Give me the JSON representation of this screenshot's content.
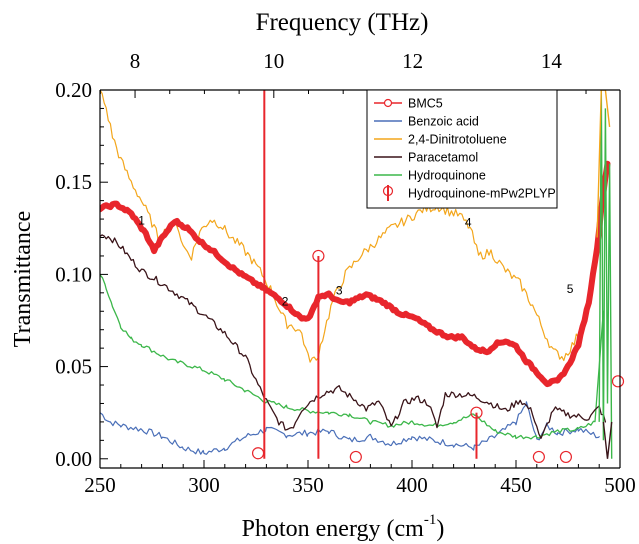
{
  "chart_data": {
    "type": "line",
    "xlabel": "Photon energy (cm",
    "xlabel_sup": "-1",
    "xlabel_close": ")",
    "ylabel": "Transmittance",
    "top_axis_label": "Frequency (THz)",
    "xlim": [
      250,
      500
    ],
    "ylim": [
      -0.005,
      0.2
    ],
    "x_ticks": [
      250,
      300,
      350,
      400,
      450,
      500
    ],
    "x_tick_labels": [
      "250",
      "300",
      "350",
      "400",
      "450",
      "500"
    ],
    "y_ticks": [
      0.0,
      0.05,
      0.1,
      0.15,
      0.2
    ],
    "y_tick_labels": [
      "0.00",
      "0.05",
      "0.10",
      "0.15",
      "0.20"
    ],
    "top_ticks_thz": [
      8,
      10,
      12,
      14
    ],
    "top_tick_labels": [
      "8",
      "10",
      "12",
      "14"
    ],
    "legend_position": "top-right",
    "series": [
      {
        "name": "BMC5",
        "color": "#e8262c",
        "x": [
          250,
          258,
          265,
          272,
          276,
          280,
          286,
          292,
          298,
          305,
          312,
          318,
          325,
          332,
          338,
          343,
          347,
          351,
          355,
          360,
          365,
          370,
          378,
          386,
          394,
          402,
          410,
          418,
          424,
          430,
          436,
          440,
          445,
          450,
          455,
          460,
          465,
          470,
          475,
          480,
          485,
          489,
          492,
          494
        ],
        "y": [
          0.136,
          0.138,
          0.133,
          0.122,
          0.113,
          0.12,
          0.129,
          0.125,
          0.118,
          0.112,
          0.105,
          0.1,
          0.095,
          0.09,
          0.085,
          0.08,
          0.076,
          0.077,
          0.088,
          0.089,
          0.085,
          0.085,
          0.089,
          0.085,
          0.079,
          0.076,
          0.07,
          0.066,
          0.066,
          0.06,
          0.058,
          0.062,
          0.064,
          0.061,
          0.053,
          0.047,
          0.041,
          0.042,
          0.05,
          0.062,
          0.085,
          0.115,
          0.145,
          0.16
        ]
      },
      {
        "name": "Benzoic acid",
        "color": "#4a6fb8",
        "x": [
          250,
          255,
          260,
          270,
          280,
          290,
          300,
          310,
          320,
          330,
          340,
          350,
          360,
          370,
          380,
          390,
          400,
          410,
          420,
          430,
          440,
          450,
          455,
          460,
          465,
          470,
          480,
          490
        ],
        "y": [
          0.025,
          0.02,
          0.018,
          0.016,
          0.012,
          0.006,
          0.003,
          0.006,
          0.012,
          0.016,
          0.013,
          0.014,
          0.015,
          0.01,
          0.012,
          0.008,
          0.012,
          0.01,
          0.008,
          0.006,
          0.012,
          0.02,
          0.03,
          0.01,
          0.018,
          0.014,
          0.016,
          0.012
        ]
      },
      {
        "name": "2,4-Dinitrotoluene",
        "color": "#f3a61c",
        "x": [
          250,
          253,
          256,
          260,
          265,
          270,
          275,
          278,
          283,
          287,
          290,
          294,
          298,
          303,
          308,
          313,
          318,
          323,
          328,
          333,
          337,
          340,
          343,
          347,
          350,
          354,
          358,
          362,
          368,
          375,
          382,
          390,
          398,
          405,
          412,
          418,
          423,
          428,
          432,
          438,
          445,
          452,
          458,
          463,
          468,
          473,
          478,
          483,
          487,
          490
        ],
        "y": [
          0.2,
          0.19,
          0.175,
          0.162,
          0.15,
          0.14,
          0.128,
          0.12,
          0.125,
          0.128,
          0.115,
          0.11,
          0.123,
          0.13,
          0.127,
          0.12,
          0.115,
          0.108,
          0.1,
          0.09,
          0.079,
          0.073,
          0.072,
          0.068,
          0.055,
          0.053,
          0.07,
          0.086,
          0.1,
          0.11,
          0.117,
          0.125,
          0.13,
          0.135,
          0.137,
          0.134,
          0.132,
          0.125,
          0.11,
          0.112,
          0.102,
          0.095,
          0.083,
          0.07,
          0.058,
          0.055,
          0.063,
          0.075,
          0.095,
          0.12
        ]
      },
      {
        "name": "Paracetamol",
        "color": "#3a1419",
        "x": [
          250,
          255,
          260,
          265,
          270,
          280,
          290,
          300,
          310,
          320,
          326,
          332,
          336,
          340,
          343,
          347,
          352,
          358,
          365,
          370,
          374,
          378,
          384,
          390,
          396,
          402,
          408,
          412,
          416,
          422,
          430,
          438,
          445,
          452,
          458,
          462,
          468,
          475,
          485,
          490,
          493
        ],
        "y": [
          0.122,
          0.12,
          0.115,
          0.108,
          0.102,
          0.095,
          0.087,
          0.078,
          0.068,
          0.055,
          0.04,
          0.027,
          0.02,
          0.016,
          0.018,
          0.027,
          0.032,
          0.036,
          0.038,
          0.034,
          0.031,
          0.027,
          0.031,
          0.017,
          0.03,
          0.033,
          0.03,
          0.017,
          0.035,
          0.035,
          0.034,
          0.03,
          0.026,
          0.032,
          0.025,
          0.01,
          0.027,
          0.024,
          0.022,
          0.028,
          0.02
        ]
      },
      {
        "name": "Hydroquinone",
        "color": "#3cb74a",
        "x": [
          250,
          253,
          256,
          260,
          265,
          270,
          278,
          285,
          292,
          300,
          310,
          320,
          330,
          340,
          350,
          360,
          370,
          380,
          390,
          400,
          410,
          420,
          430,
          440,
          450,
          460,
          470,
          480,
          488,
          492
        ],
        "y": [
          0.1,
          0.093,
          0.083,
          0.072,
          0.065,
          0.062,
          0.057,
          0.053,
          0.051,
          0.048,
          0.043,
          0.037,
          0.031,
          0.028,
          0.026,
          0.025,
          0.024,
          0.02,
          0.018,
          0.02,
          0.018,
          0.02,
          0.024,
          0.015,
          0.012,
          0.012,
          0.015,
          0.016,
          0.02,
          0.08
        ]
      }
    ],
    "sticks": {
      "name": "Hydroquinone-mPw2PLYP",
      "color": "#e8262c",
      "x": [
        326,
        329,
        355,
        373,
        431,
        461,
        474,
        500
      ],
      "y": [
        0.003,
        0.2,
        0.11,
        0.001,
        0.025,
        0.001,
        0.001,
        0.042
      ],
      "vertical_line": [
        false,
        true,
        true,
        false,
        true,
        false,
        false,
        false
      ]
    },
    "annotations": [
      {
        "text": "1",
        "x": 270,
        "y": 0.127
      },
      {
        "text": "2",
        "x": 339,
        "y": 0.083
      },
      {
        "text": "3",
        "x": 365,
        "y": 0.089
      },
      {
        "text": "4",
        "x": 427,
        "y": 0.126
      },
      {
        "text": "5",
        "x": 476,
        "y": 0.09
      }
    ]
  }
}
